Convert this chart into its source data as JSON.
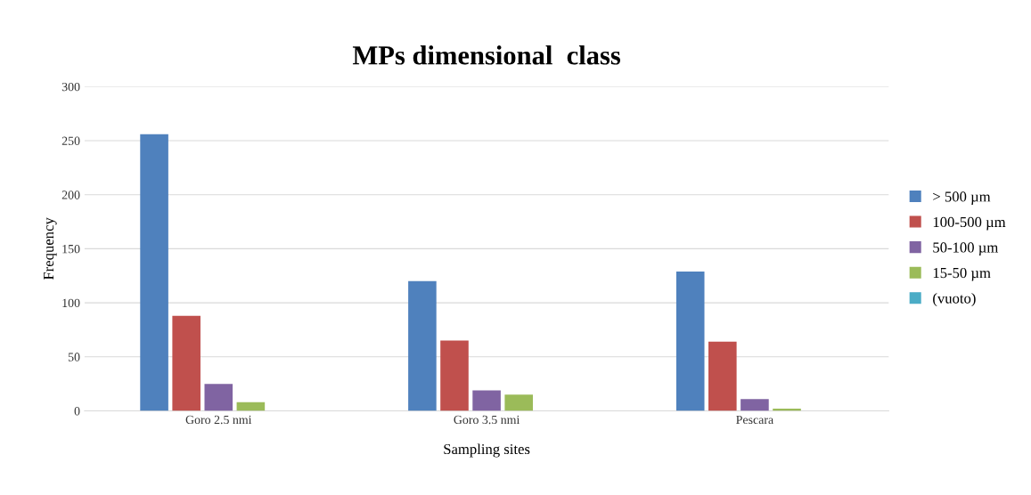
{
  "chart_data": {
    "type": "bar",
    "title": "MPs dimensional  class",
    "xlabel": "Sampling sites",
    "ylabel": "Frequency",
    "categories": [
      "Goro 2.5 nmi",
      "Goro 3.5 nmi",
      "Pescara"
    ],
    "series": [
      {
        "name": "> 500 µm",
        "color": "#4f81bd",
        "values": [
          256,
          120,
          129
        ]
      },
      {
        "name": "100-500 µm",
        "color": "#c0504d",
        "values": [
          88,
          65,
          64
        ]
      },
      {
        "name": "50-100 µm",
        "color": "#8064a2",
        "values": [
          25,
          19,
          11
        ]
      },
      {
        "name": "15-50 µm",
        "color": "#9bbb59",
        "values": [
          8,
          15,
          2
        ]
      },
      {
        "name": "(vuoto)",
        "color": "#4bacc6",
        "values": [
          null,
          null,
          null
        ]
      }
    ],
    "ylim": [
      0,
      300
    ],
    "yticks": [
      0,
      50,
      100,
      150,
      200,
      250,
      300
    ],
    "grid": "y",
    "legend": "right"
  }
}
